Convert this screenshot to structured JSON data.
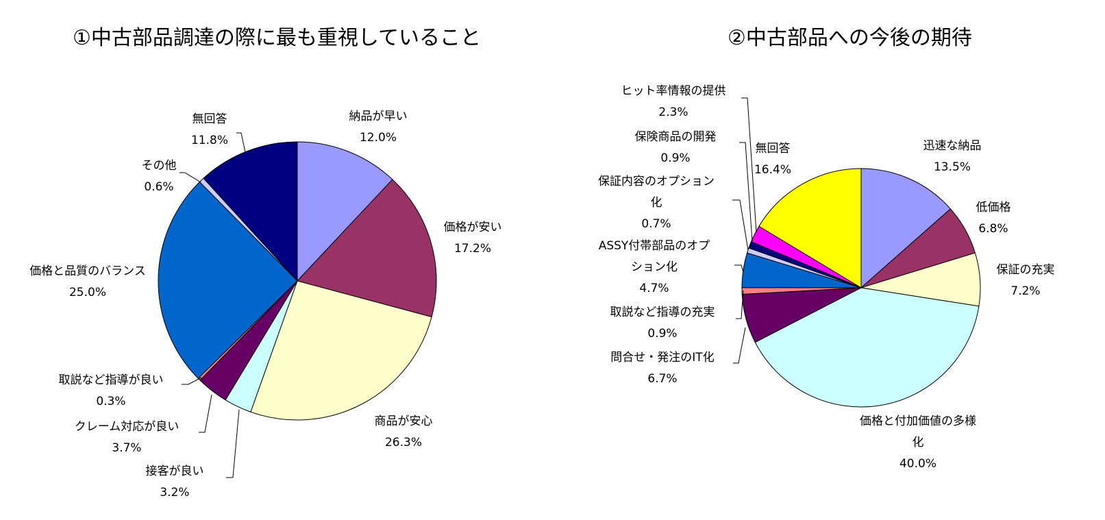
{
  "chart_data": [
    {
      "type": "pie",
      "title": "①中古部品調達の際に最も重視していること",
      "slices": [
        {
          "label": [
            "納品が早い"
          ],
          "value_label": "12.0%",
          "value": 12.0,
          "color": "#9999ff"
        },
        {
          "label": [
            "価格が安い"
          ],
          "value_label": "17.2%",
          "value": 17.2,
          "color": "#993366"
        },
        {
          "label": [
            "商品が安心"
          ],
          "value_label": "26.3%",
          "value": 26.3,
          "color": "#ffffcc"
        },
        {
          "label": [
            "接客が良い"
          ],
          "value_label": "3.2%",
          "value": 3.2,
          "color": "#ccffff"
        },
        {
          "label": [
            "クレーム対応が良い"
          ],
          "value_label": "3.7%",
          "value": 3.7,
          "color": "#660066"
        },
        {
          "label": [
            "取説など指導が良い"
          ],
          "value_label": "0.3%",
          "value": 0.3,
          "color": "#ff8080"
        },
        {
          "label": [
            "価格と品質のバランス"
          ],
          "value_label": "25.0%",
          "value": 25.0,
          "color": "#0066cc"
        },
        {
          "label": [
            "その他"
          ],
          "value_label": "0.6%",
          "value": 0.6,
          "color": "#ccccff"
        },
        {
          "label": [
            "無回答"
          ],
          "value_label": "11.8%",
          "value": 11.8,
          "color": "#000080"
        }
      ]
    },
    {
      "type": "pie",
      "title": "②中古部品への今後の期待",
      "slices": [
        {
          "label": [
            "迅速な納品"
          ],
          "value_label": "13.5%",
          "value": 13.5,
          "color": "#9999ff"
        },
        {
          "label": [
            "低価格"
          ],
          "value_label": "6.8%",
          "value": 6.8,
          "color": "#993366"
        },
        {
          "label": [
            "保証の充実"
          ],
          "value_label": "7.2%",
          "value": 7.2,
          "color": "#ffffcc"
        },
        {
          "label": [
            "価格と付加価値の多様",
            "化"
          ],
          "value_label": "40.0%",
          "value": 40.0,
          "color": "#ccffff"
        },
        {
          "label": [
            "問合せ・発注のIT化"
          ],
          "value_label": "6.7%",
          "value": 6.7,
          "color": "#660066"
        },
        {
          "label": [
            "取説など指導の充実"
          ],
          "value_label": "0.9%",
          "value": 0.9,
          "color": "#ff8080"
        },
        {
          "label": [
            "ASSY付帯部品のオプ",
            "ション化"
          ],
          "value_label": "4.7%",
          "value": 4.7,
          "color": "#0066cc"
        },
        {
          "label": [
            "保証内容のオプション",
            "化"
          ],
          "value_label": "0.7%",
          "value": 0.7,
          "color": "#ccccff"
        },
        {
          "label": [
            "保険商品の開発"
          ],
          "value_label": "0.9%",
          "value": 0.9,
          "color": "#000080"
        },
        {
          "label": [
            "ヒット率情報の提供"
          ],
          "value_label": "2.3%",
          "value": 2.3,
          "color": "#ff00ff"
        },
        {
          "label": [
            "無回答"
          ],
          "value_label": "16.4%",
          "value": 16.4,
          "color": "#ffff00"
        }
      ]
    }
  ]
}
